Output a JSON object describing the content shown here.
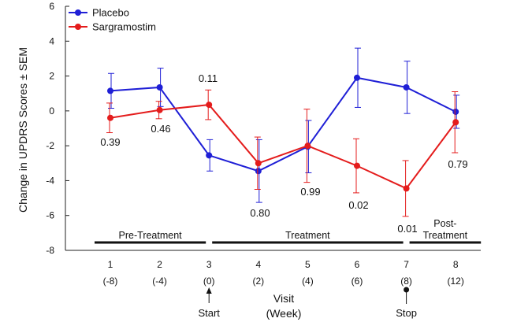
{
  "chart_data": {
    "type": "line",
    "ylabel": "Change in UPDRS Scores ± SEM",
    "xlabel": "Visit",
    "xlabel_sub": "(Week)",
    "ylim": [
      -8,
      6
    ],
    "yticks": [
      -8,
      -6,
      -4,
      -2,
      0,
      2,
      4,
      6
    ],
    "x": [
      1,
      2,
      3,
      4,
      5,
      6,
      7,
      8
    ],
    "visit_labels": [
      "1",
      "2",
      "3",
      "4",
      "5",
      "6",
      "7",
      "8"
    ],
    "week_labels": [
      "(-8)",
      "(-4)",
      "(0)",
      "(2)",
      "(4)",
      "(6)",
      "(8)",
      "(12)"
    ],
    "series": [
      {
        "name": "Placebo",
        "color": "#1f1fd6",
        "values": [
          1.15,
          1.35,
          -2.55,
          -3.45,
          -2.05,
          1.9,
          1.35,
          -0.05
        ],
        "err": [
          1.0,
          1.1,
          0.9,
          1.8,
          1.5,
          1.7,
          1.5,
          0.95
        ]
      },
      {
        "name": "Sargramostim",
        "color": "#e41c1c",
        "values": [
          -0.4,
          0.05,
          0.35,
          -3.0,
          -2.0,
          -3.15,
          -4.45,
          -0.65
        ],
        "err": [
          0.85,
          0.5,
          0.85,
          1.5,
          2.1,
          1.55,
          1.6,
          1.75
        ]
      }
    ],
    "p_values": [
      "0.39",
      "0.46",
      "0.11",
      "0.80",
      "0.99",
      "0.02",
      "0.01",
      "0.79"
    ],
    "phases": [
      {
        "label": "Pre-Treatment",
        "line1": "Pre-Treatment",
        "line2": "",
        "from": 1,
        "to": 3
      },
      {
        "label": "Treatment",
        "line1": "Treatment",
        "line2": "",
        "from": 3,
        "to": 7
      },
      {
        "label": "Post-Treatment",
        "line1": "Post-",
        "line2": "Treatment",
        "from": 7,
        "to": 8
      }
    ],
    "markers": [
      {
        "label": "Start",
        "visit": 3,
        "style": "arrow"
      },
      {
        "label": "Stop",
        "visit": 7,
        "style": "dot"
      }
    ]
  }
}
